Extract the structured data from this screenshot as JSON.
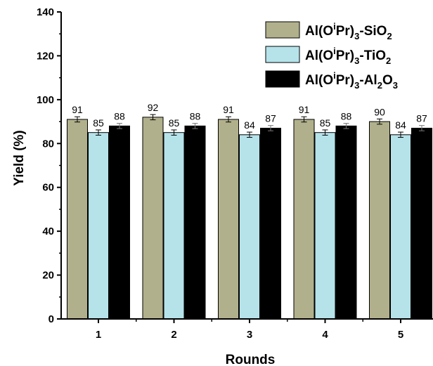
{
  "chart_data": {
    "type": "bar",
    "xlabel": "Rounds",
    "ylabel": "Yield (%)",
    "ylim": [
      0,
      140
    ],
    "yticks": [
      0,
      20,
      40,
      60,
      80,
      100,
      120,
      140
    ],
    "categories": [
      "1",
      "2",
      "3",
      "4",
      "5"
    ],
    "legend_position": "top-right",
    "series": [
      {
        "name": "Al(OⁱPr)₃-SiO₂",
        "legend_parts": [
          "Al(O",
          "i",
          "Pr)",
          "3",
          "-SiO",
          "2"
        ],
        "color": "#b1b08c",
        "values": [
          91,
          92,
          91,
          91,
          90
        ],
        "errors": [
          1.2,
          1.2,
          1.2,
          1.2,
          1.2
        ]
      },
      {
        "name": "Al(OⁱPr)₃-TiO₂",
        "legend_parts": [
          "Al(O",
          "i",
          "Pr)",
          "3",
          "-TiO",
          "2"
        ],
        "color": "#b6e3ea",
        "values": [
          85,
          85,
          84,
          85,
          84
        ],
        "errors": [
          1.2,
          1.2,
          1.2,
          1.2,
          1.2
        ]
      },
      {
        "name": "Al(OⁱPr)₃-Al₂O₃",
        "legend_parts": [
          "Al(O",
          "i",
          "Pr)",
          "3",
          "-Al",
          "2",
          "O",
          "3"
        ],
        "color": "#000000",
        "values": [
          88,
          88,
          87,
          88,
          87
        ],
        "errors": [
          1.2,
          1.2,
          1.2,
          1.2,
          1.2
        ]
      }
    ]
  }
}
